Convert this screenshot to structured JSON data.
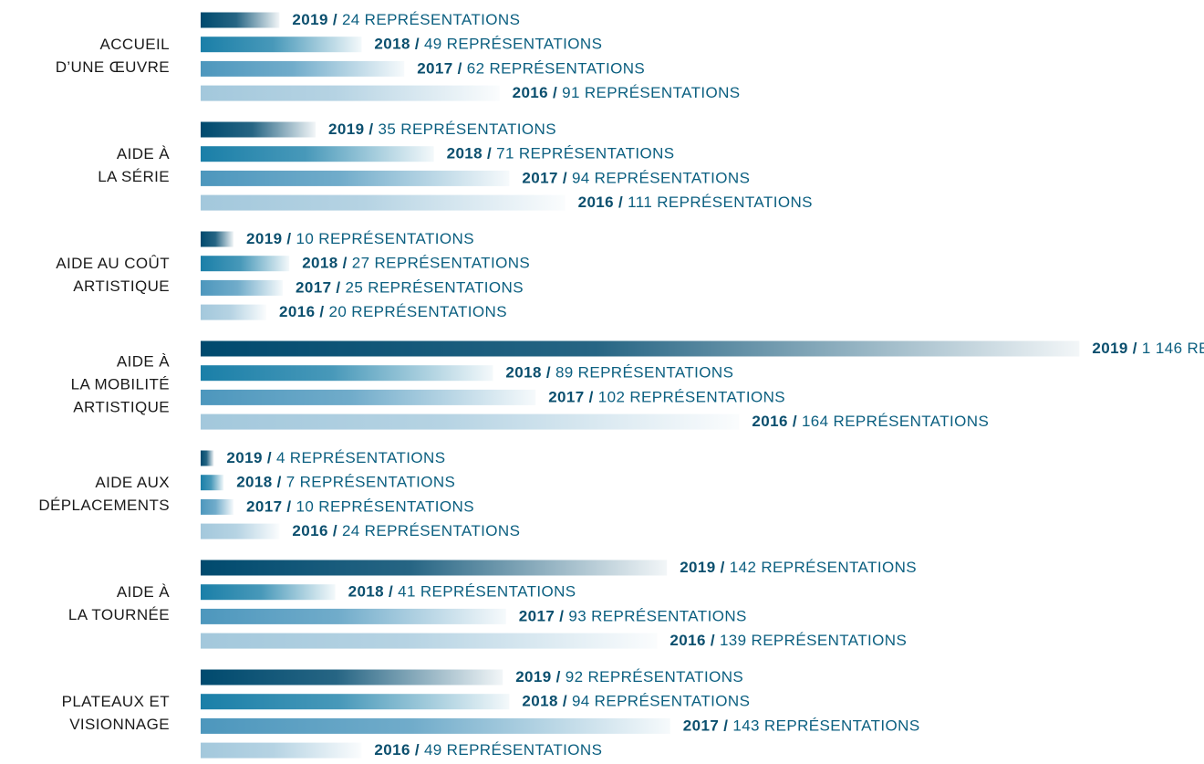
{
  "chart_data": {
    "type": "bar",
    "orientation": "horizontal",
    "unit_label": "REPRÉSENTATIONS",
    "separator": "/",
    "categories": [
      [
        "ACCUEIL",
        "D’UNE ŒUVRE"
      ],
      [
        "AIDE À",
        "LA SÉRIE"
      ],
      [
        "AIDE AU COÛT",
        "ARTISTIQUE"
      ],
      [
        "AIDE À",
        "LA MOBILITÉ",
        "ARTISTIQUE"
      ],
      [
        "AIDE AUX",
        "DÉPLACEMENTS"
      ],
      [
        "AIDE À",
        "LA TOURNÉE"
      ],
      [
        "PLATEAUX ET",
        "VISIONNAGE"
      ]
    ],
    "series": [
      {
        "name": "2019",
        "color": "#004a6e",
        "values": [
          24,
          35,
          10,
          1146,
          4,
          142,
          92
        ],
        "value_labels": [
          "24",
          "35",
          "10",
          "1 146",
          "4",
          "142",
          "92"
        ]
      },
      {
        "name": "2018",
        "color": "#1a7fa8",
        "values": [
          49,
          71,
          27,
          89,
          7,
          41,
          94
        ]
      },
      {
        "name": "2017",
        "color": "#4d97bd",
        "values": [
          62,
          94,
          25,
          102,
          10,
          93,
          143
        ]
      },
      {
        "name": "2016",
        "color": "#a3c8dc",
        "values": [
          91,
          111,
          20,
          164,
          24,
          139,
          49
        ]
      }
    ]
  }
}
